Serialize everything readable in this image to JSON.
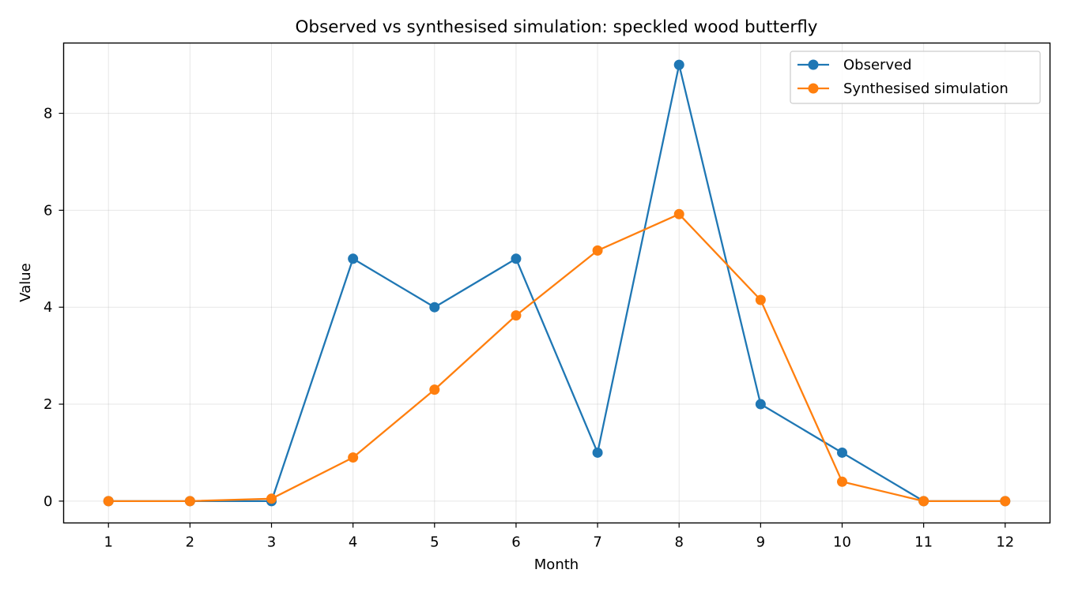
{
  "chart_data": {
    "type": "line",
    "title": "Observed vs synthesised simulation: speckled wood butterfly",
    "xlabel": "Month",
    "ylabel": "Value",
    "x": [
      1,
      2,
      3,
      4,
      5,
      6,
      7,
      8,
      9,
      10,
      11,
      12
    ],
    "xlim": [
      0.45,
      12.55
    ],
    "ylim": [
      -0.45,
      9.45
    ],
    "yticks": [
      0,
      2,
      4,
      6,
      8
    ],
    "grid": true,
    "legend_position": "top-right",
    "series": [
      {
        "name": "Observed",
        "color": "#1f77b4",
        "marker": "circle",
        "values": [
          0,
          0,
          0,
          5,
          4,
          5,
          1,
          9,
          2,
          1,
          0,
          0
        ]
      },
      {
        "name": "Synthesised simulation",
        "color": "#ff7f0e",
        "marker": "circle",
        "values": [
          0,
          0,
          0.05,
          0.9,
          2.3,
          3.83,
          5.17,
          5.92,
          4.15,
          0.4,
          0,
          0
        ]
      }
    ]
  }
}
